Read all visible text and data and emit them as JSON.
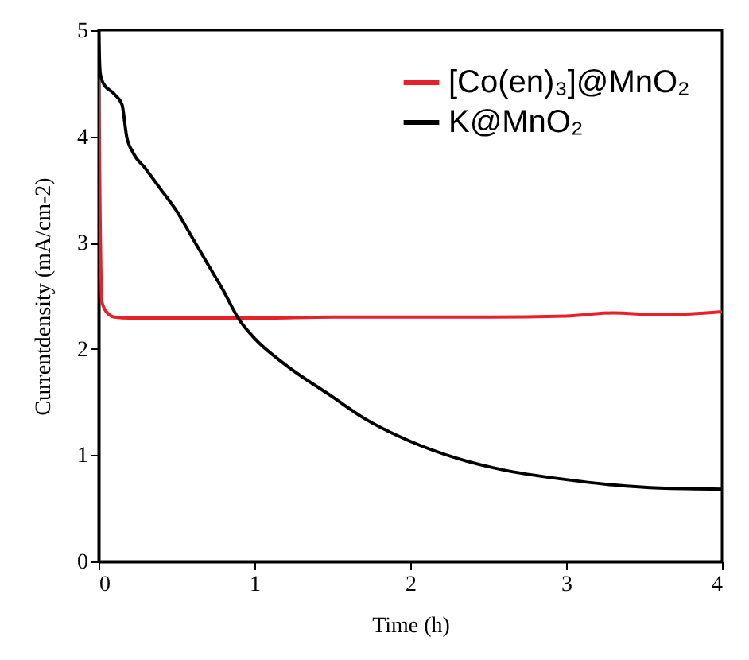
{
  "chart_data": {
    "type": "line",
    "xlabel": "Time (h)",
    "ylabel": "Currentdensity (mA/cm-2)",
    "xlim": [
      0,
      4
    ],
    "xticks": [
      0,
      1,
      2,
      3,
      4
    ],
    "ylim": [
      0,
      5
    ],
    "yticks": [
      0,
      1,
      2,
      3,
      4,
      5
    ],
    "grid": false,
    "legend": "top right",
    "marker": "none",
    "line_style": "solid",
    "series": [
      {
        "name": "[Co(en)₃]@MnO₂",
        "color": "#e8202a",
        "x": [
          0,
          0.01,
          0.02,
          0.05,
          0.1,
          0.2,
          0.5,
          1.0,
          1.5,
          2.0,
          2.5,
          3.0,
          3.3,
          3.6,
          3.8,
          4.0
        ],
        "values": [
          4.6,
          3.2,
          2.45,
          2.35,
          2.3,
          2.29,
          2.29,
          2.29,
          2.3,
          2.3,
          2.3,
          2.31,
          2.34,
          2.32,
          2.33,
          2.35
        ]
      },
      {
        "name": "K@MnO₂",
        "color": "#000000",
        "x": [
          0,
          0.01,
          0.03,
          0.1,
          0.15,
          0.18,
          0.22,
          0.3,
          0.4,
          0.5,
          0.6,
          0.7,
          0.8,
          0.9,
          1.0,
          1.2,
          1.5,
          1.7,
          2.0,
          2.3,
          2.6,
          3.0,
          3.3,
          3.6,
          4.0
        ],
        "values": [
          5.0,
          4.6,
          4.5,
          4.4,
          4.3,
          4.0,
          3.85,
          3.7,
          3.5,
          3.3,
          3.05,
          2.8,
          2.55,
          2.28,
          2.1,
          1.85,
          1.55,
          1.35,
          1.13,
          0.97,
          0.86,
          0.77,
          0.72,
          0.69,
          0.68
        ]
      }
    ]
  }
}
